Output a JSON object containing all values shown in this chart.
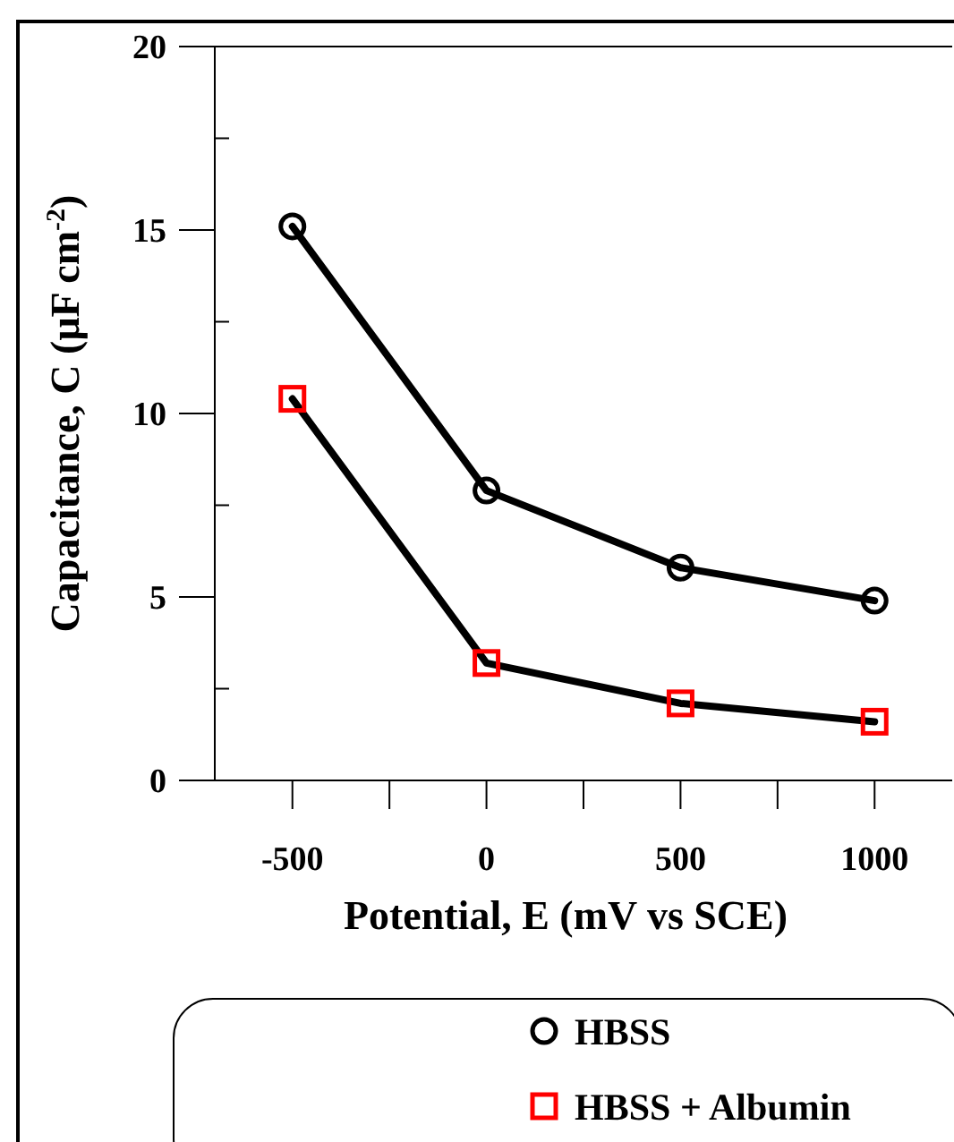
{
  "chart_data": {
    "type": "line",
    "xlabel": "Potential, E (mV vs SCE)",
    "ylabel": "Capacitance, C (μF cm$^{-2}$)",
    "x": [
      -500,
      0,
      500,
      1000
    ],
    "series": [
      {
        "name": "HBSS",
        "color": "#000000",
        "values": [
          15.1,
          7.9,
          5.8,
          4.9
        ],
        "marker": "circle"
      },
      {
        "name": "HBSS + Albumin",
        "color": "#ff0000",
        "values": [
          10.4,
          3.2,
          2.1,
          1.6
        ],
        "marker": "square"
      }
    ],
    "xlim": [
      -700,
      1200
    ],
    "xticks": [
      -500,
      {
        "value": -250,
        "label": null
      },
      0,
      {
        "value": 250,
        "label": null
      },
      500,
      {
        "value": 750,
        "label": null
      },
      1000
    ],
    "ylim": [
      0,
      20
    ],
    "yticks": [
      0,
      {
        "value": 2.5,
        "label": null
      },
      5,
      {
        "value": 7.5,
        "label": null
      },
      10,
      {
        "value": 12.5,
        "label": null
      },
      15,
      {
        "value": 17.5,
        "label": null
      },
      20
    ],
    "grid": false,
    "legend": "bottom",
    "line_style": "solid"
  }
}
